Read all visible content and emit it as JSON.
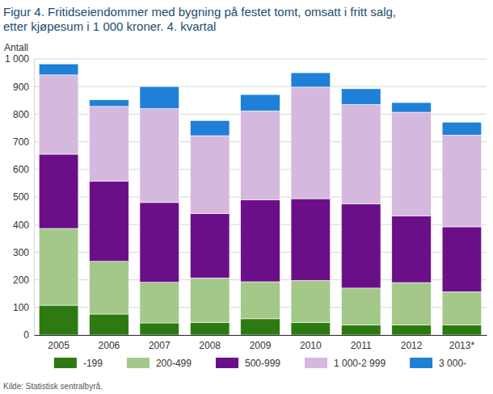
{
  "chart_data": {
    "type": "bar",
    "stacked": true,
    "title": [
      "Figur 4. Fritidseiendommer med bygning på festet tomt, omsatt i fritt salg,",
      "etter kjøpesum i 1 000 kroner. 4. kvartal"
    ],
    "y_label": "Antall",
    "source": "Kilde: Statistisk sentralbyrå.",
    "categories": [
      "2005",
      "2006",
      "2007",
      "2008",
      "2009",
      "2010",
      "2011",
      "2012",
      "2013*"
    ],
    "series": [
      {
        "name": "-199",
        "color": "#2d7a12",
        "values": [
          108,
          76,
          44,
          46,
          59,
          46,
          36,
          36,
          36
        ]
      },
      {
        "name": "200-499",
        "color": "#a3c88a",
        "values": [
          278,
          191,
          147,
          161,
          134,
          152,
          134,
          154,
          121
        ]
      },
      {
        "name": "500-999",
        "color": "#6b0f88",
        "values": [
          269,
          291,
          289,
          233,
          297,
          296,
          305,
          242,
          235
        ]
      },
      {
        "name": "1 000-2 999",
        "color": "#d4b8de",
        "values": [
          287,
          270,
          340,
          282,
          322,
          404,
          360,
          375,
          332
        ]
      },
      {
        "name": "3 000-",
        "color": "#1f80d8",
        "values": [
          40,
          24,
          80,
          55,
          59,
          52,
          57,
          35,
          47
        ]
      }
    ],
    "ylim": [
      0,
      1000
    ],
    "yticks": [
      0,
      100,
      200,
      300,
      400,
      500,
      600,
      700,
      800,
      900,
      {
        "value": 1000,
        "label": "1 000"
      }
    ],
    "grid": true,
    "legend": "bottom"
  }
}
